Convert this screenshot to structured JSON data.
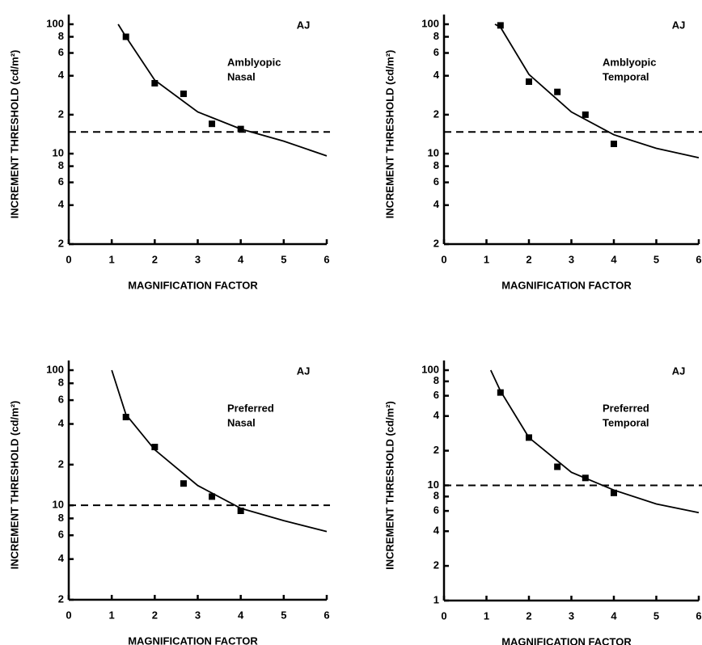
{
  "chart_data": [
    {
      "type": "scatter",
      "label": "AJ",
      "annotation": [
        "Amblyopic",
        "Nasal"
      ],
      "x_label": "MAGNIFICATION FACTOR",
      "y_label": "INCREMENT THRESHOLD (cd/m²)",
      "log_y": true,
      "color": "#000000",
      "x": [
        1.33,
        2,
        2.67,
        3.33,
        4
      ],
      "values": [
        80,
        35,
        29,
        17,
        15.5
      ],
      "fit": {
        "x": [
          1.15,
          1.33,
          2,
          3,
          4,
          5,
          6
        ],
        "values": [
          100,
          80,
          37,
          21,
          15.5,
          12.5,
          9.6
        ]
      },
      "reference": 14.7,
      "xlim": [
        0,
        6
      ],
      "xticks": [
        0,
        1,
        2,
        3,
        4,
        5,
        6
      ],
      "ylim": [
        2,
        100
      ],
      "yticks": [
        100,
        {
          "value": 80,
          "label": "8"
        },
        {
          "value": 60,
          "label": "6"
        },
        {
          "value": 40,
          "label": "4"
        },
        {
          "value": 20,
          "label": "2"
        },
        10,
        8,
        6,
        4,
        2
      ]
    },
    {
      "type": "scatter",
      "label": "AJ",
      "annotation": [
        "Amblyopic",
        "Temporal"
      ],
      "x_label": "MAGNIFICATION FACTOR",
      "y_label": "INCREMENT THRESHOLD (cd/m²)",
      "log_y": true,
      "color": "#000000",
      "x": [
        1.33,
        2,
        2.67,
        3.33,
        4
      ],
      "values": [
        98,
        36,
        30,
        20,
        11.9
      ],
      "fit": {
        "x": [
          1.2,
          1.33,
          2,
          3,
          4,
          5,
          6
        ],
        "values": [
          100,
          95,
          41,
          21,
          14,
          11,
          9.3
        ]
      },
      "reference": 14.7,
      "xlim": [
        0,
        6
      ],
      "xticks": [
        0,
        1,
        2,
        3,
        4,
        5,
        6
      ],
      "ylim": [
        2,
        100
      ],
      "yticks": [
        100,
        {
          "value": 80,
          "label": "8"
        },
        {
          "value": 60,
          "label": "6"
        },
        {
          "value": 40,
          "label": "4"
        },
        {
          "value": 20,
          "label": "2"
        },
        10,
        8,
        6,
        4,
        2
      ]
    },
    {
      "type": "scatter",
      "label": "AJ",
      "annotation": [
        "Preferred",
        "Nasal"
      ],
      "x_label": "MAGNIFICATION FACTOR",
      "y_label": "INCREMENT THRESHOLD (cd/m²)",
      "log_y": true,
      "color": "#000000",
      "x": [
        1.33,
        2,
        2.67,
        3.33,
        4
      ],
      "values": [
        45,
        27,
        14.5,
        11.6,
        9.1
      ],
      "fit": {
        "x": [
          1,
          1.33,
          2,
          3,
          4,
          5,
          6
        ],
        "values": [
          100,
          47,
          25.8,
          14,
          9.5,
          7.7,
          6.4
        ]
      },
      "reference": 10,
      "xlim": [
        0,
        6
      ],
      "xticks": [
        0,
        1,
        2,
        3,
        4,
        5,
        6
      ],
      "ylim": [
        2,
        100
      ],
      "yticks": [
        100,
        {
          "value": 80,
          "label": "8"
        },
        {
          "value": 60,
          "label": "6"
        },
        {
          "value": 40,
          "label": "4"
        },
        {
          "value": 20,
          "label": "2"
        },
        10,
        8,
        6,
        4,
        2
      ]
    },
    {
      "type": "scatter",
      "label": "AJ",
      "annotation": [
        "Preferred",
        "Temporal"
      ],
      "x_label": "MAGNIFICATION FACTOR",
      "y_label": "INCREMENT THRESHOLD (cd/m²)",
      "log_y": true,
      "color": "#000000",
      "x": [
        1.33,
        2,
        2.67,
        3.33,
        4
      ],
      "values": [
        64,
        26,
        14.5,
        11.6,
        8.6
      ],
      "fit": {
        "x": [
          1.1,
          1.33,
          2,
          3,
          4,
          5,
          6
        ],
        "values": [
          100,
          66,
          26,
          13,
          9.1,
          6.9,
          5.8
        ]
      },
      "reference": 10,
      "xlim": [
        0,
        6
      ],
      "xticks": [
        0,
        1,
        2,
        3,
        4,
        5,
        6
      ],
      "ylim": [
        1,
        100
      ],
      "yticks": [
        100,
        {
          "value": 80,
          "label": "8"
        },
        {
          "value": 60,
          "label": "6"
        },
        {
          "value": 40,
          "label": "4"
        },
        {
          "value": 20,
          "label": "2"
        },
        10,
        8,
        6,
        4,
        2,
        1
      ]
    }
  ]
}
